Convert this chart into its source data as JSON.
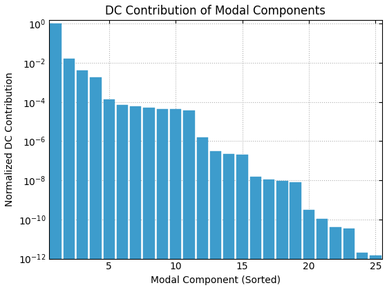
{
  "title": "DC Contribution of Modal Components",
  "xlabel": "Modal Component (Sorted)",
  "ylabel": "Normalized DC Contribution",
  "bar_color": "#3d9ccc",
  "bar_edgecolor": "#3d9ccc",
  "ylim_log": [
    -12,
    0
  ],
  "values": [
    1.0,
    0.016,
    0.004,
    0.0018,
    0.00013,
    7e-05,
    6e-05,
    5e-05,
    4.5e-05,
    4.2e-05,
    3.8e-05,
    1.5e-06,
    3e-07,
    2.2e-07,
    2e-07,
    1.5e-08,
    1.1e-08,
    9e-09,
    8e-09,
    3e-10,
    1.1e-10,
    4e-11,
    3.5e-11,
    2e-12,
    1.5e-12
  ],
  "background_color": "#ffffff",
  "grid_color": "#b0b0b0",
  "title_fontsize": 12,
  "label_fontsize": 10,
  "tick_fontsize": 10
}
